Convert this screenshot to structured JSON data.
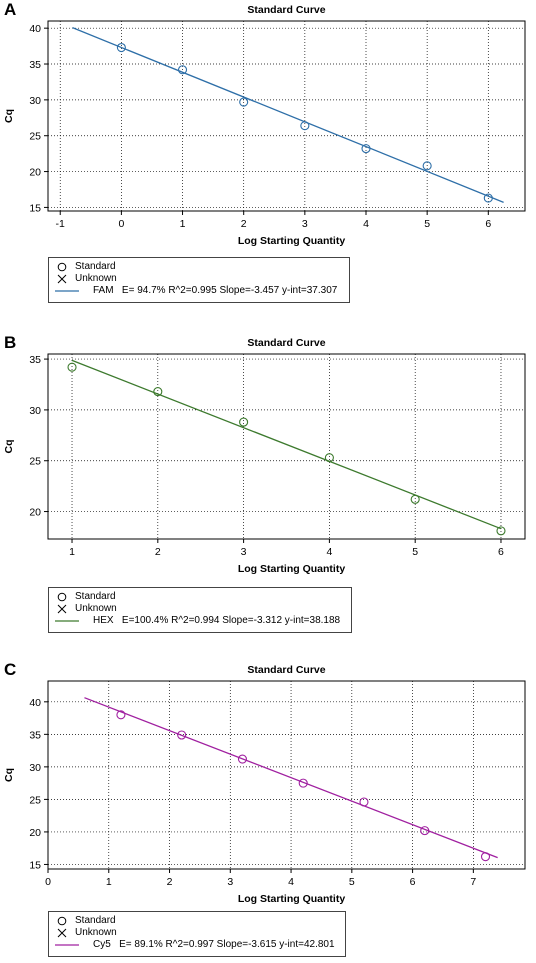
{
  "chart_data": [
    {
      "panel_letter": "A",
      "type": "scatter",
      "title": "Standard Curve",
      "xlabel": "Log Starting Quantity",
      "ylabel": "Cq",
      "xlim": [
        -1.2,
        6.6
      ],
      "ylim": [
        14.5,
        41
      ],
      "xticks": [
        -1,
        0,
        1,
        2,
        3,
        4,
        5,
        6
      ],
      "yticks": [
        15,
        20,
        25,
        30,
        35,
        40
      ],
      "grid": true,
      "color": "#2e6fa8",
      "fit_line": {
        "x": [
          -0.8,
          6.25
        ],
        "slope": -3.457,
        "intercept": 37.307
      },
      "series": [
        {
          "name": "Standard",
          "x": [
            0,
            1,
            2,
            3,
            4,
            5,
            6
          ],
          "y": [
            37.3,
            34.2,
            29.7,
            26.4,
            23.2,
            20.8,
            16.3
          ]
        }
      ],
      "legend": {
        "standard": "Standard",
        "unknown": "Unknown",
        "fit_label": "FAM",
        "fit_stats": "E= 94.7% R^2=0.995 Slope=-3.457 y-int=37.307"
      }
    },
    {
      "panel_letter": "B",
      "type": "scatter",
      "title": "Standard Curve",
      "xlabel": "Log Starting Quantity",
      "ylabel": "Cq",
      "xlim": [
        0.72,
        6.28
      ],
      "ylim": [
        17.3,
        35.5
      ],
      "xticks": [
        1,
        2,
        3,
        4,
        5,
        6
      ],
      "yticks": [
        20,
        25,
        30,
        35
      ],
      "grid": true,
      "color": "#3d7a2e",
      "fit_line": {
        "x": [
          1,
          6
        ],
        "slope": -3.312,
        "intercept": 38.188
      },
      "series": [
        {
          "name": "Standard",
          "x": [
            1,
            2,
            3,
            4,
            5,
            6
          ],
          "y": [
            34.2,
            31.8,
            28.8,
            25.3,
            21.2,
            18.1
          ]
        }
      ],
      "legend": {
        "standard": "Standard",
        "unknown": "Unknown",
        "fit_label": "HEX",
        "fit_stats": "E=100.4% R^2=0.994 Slope=-3.312 y-int=38.188"
      }
    },
    {
      "panel_letter": "C",
      "type": "scatter",
      "title": "Standard Curve",
      "xlabel": "Log Starting Quantity",
      "ylabel": "Cq",
      "xlim": [
        0,
        7.85
      ],
      "ylim": [
        14.3,
        43.2
      ],
      "xticks": [
        0,
        1,
        2,
        3,
        4,
        5,
        6,
        7
      ],
      "yticks": [
        15,
        20,
        25,
        30,
        35,
        40
      ],
      "grid": true,
      "color": "#a020a0",
      "fit_line": {
        "x": [
          0.6,
          7.4
        ],
        "slope": -3.615,
        "intercept": 42.801
      },
      "series": [
        {
          "name": "Standard",
          "x": [
            1.2,
            2.2,
            3.2,
            4.2,
            5.2,
            6.2,
            7.2
          ],
          "y": [
            38.0,
            34.9,
            31.2,
            27.5,
            24.6,
            20.2,
            16.2
          ]
        }
      ],
      "legend": {
        "standard": "Standard",
        "unknown": "Unknown",
        "fit_label": "Cy5",
        "fit_stats": "E= 89.1% R^2=0.997 Slope=-3.615 y-int=42.801"
      }
    }
  ]
}
